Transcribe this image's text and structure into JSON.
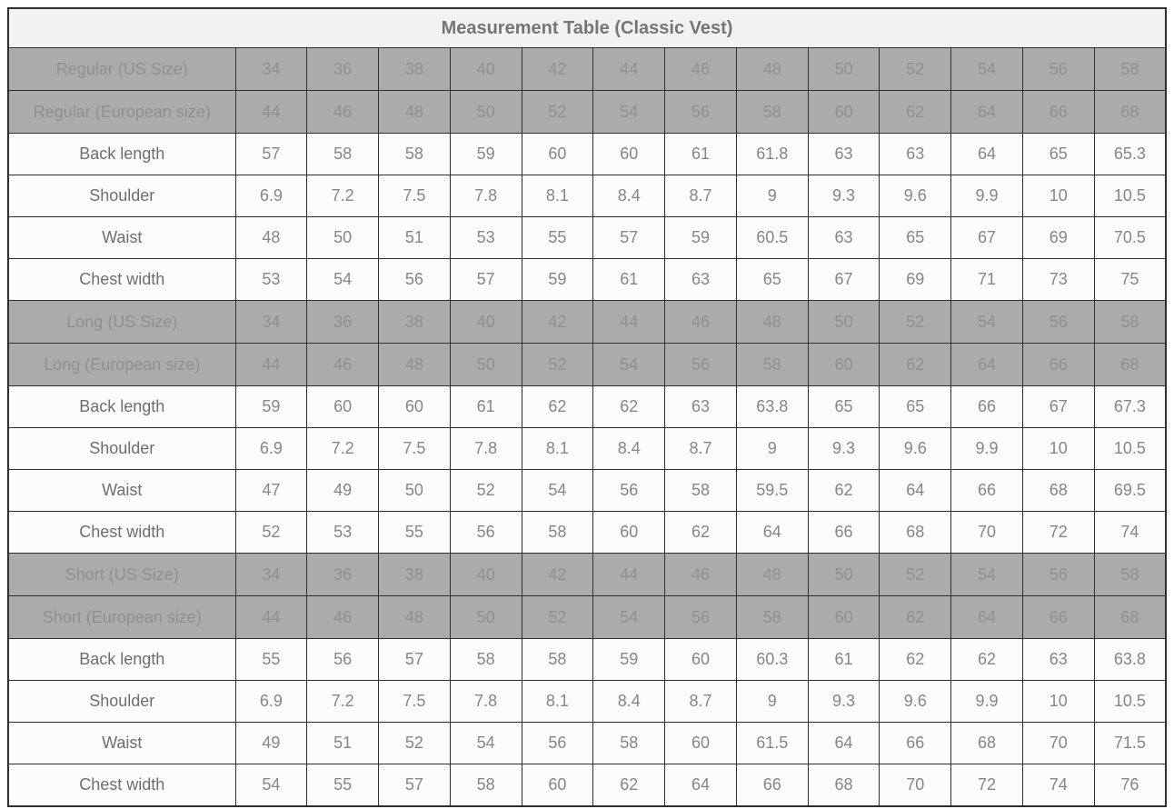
{
  "page": {
    "title": "Measurement Table (Classic Vest)"
  },
  "colors": {
    "border": "#2e2e2e",
    "title_bg": "#f2f2f2",
    "title_text": "#757575",
    "size_row_bg": "#ababab",
    "size_row_text": "#8f8f8f",
    "size_row_divider": "#9c9c9c",
    "measure_row_bg": "#fcfcfc",
    "measure_label_text": "#6e6e6e",
    "measure_value_text": "#868686"
  },
  "chart_data": {
    "type": "table",
    "title": "Measurement Table (Classic Vest)",
    "columns_per_row": 13,
    "sections": [
      {
        "name": "Regular",
        "size_rows": [
          {
            "label": "Regular (US Size)",
            "values": [
              34,
              36,
              38,
              40,
              42,
              44,
              46,
              48,
              50,
              52,
              54,
              56,
              58
            ]
          },
          {
            "label": "Regular (European size)",
            "values": [
              44,
              46,
              48,
              50,
              52,
              54,
              56,
              58,
              60,
              62,
              64,
              66,
              68
            ]
          }
        ],
        "measurement_rows": [
          {
            "label": "Back length",
            "values": [
              57,
              58,
              58,
              59,
              60,
              60,
              61,
              61.8,
              63,
              63,
              64,
              65,
              65.3
            ]
          },
          {
            "label": "Shoulder",
            "values": [
              6.9,
              7.2,
              7.5,
              7.8,
              8.1,
              8.4,
              8.7,
              9,
              9.3,
              9.6,
              9.9,
              10,
              10.5
            ]
          },
          {
            "label": "Waist",
            "values": [
              48,
              50,
              51,
              53,
              55,
              57,
              59,
              60.5,
              63,
              65,
              67,
              69,
              70.5
            ]
          },
          {
            "label": "Chest width",
            "values": [
              53,
              54,
              56,
              57,
              59,
              61,
              63,
              65,
              67,
              69,
              71,
              73,
              75
            ]
          }
        ]
      },
      {
        "name": "Long",
        "size_rows": [
          {
            "label": "Long (US Size)",
            "values": [
              34,
              36,
              38,
              40,
              42,
              44,
              46,
              48,
              50,
              52,
              54,
              56,
              58
            ]
          },
          {
            "label": "Long (European size)",
            "values": [
              44,
              46,
              48,
              50,
              52,
              54,
              56,
              58,
              60,
              62,
              64,
              66,
              68
            ]
          }
        ],
        "measurement_rows": [
          {
            "label": "Back length",
            "values": [
              59,
              60,
              60,
              61,
              62,
              62,
              63,
              63.8,
              65,
              65,
              66,
              67,
              67.3
            ]
          },
          {
            "label": "Shoulder",
            "values": [
              6.9,
              7.2,
              7.5,
              7.8,
              8.1,
              8.4,
              8.7,
              9,
              9.3,
              9.6,
              9.9,
              10,
              10.5
            ]
          },
          {
            "label": "Waist",
            "values": [
              47,
              49,
              50,
              52,
              54,
              56,
              58,
              59.5,
              62,
              64,
              66,
              68,
              69.5
            ]
          },
          {
            "label": "Chest width",
            "values": [
              52,
              53,
              55,
              56,
              58,
              60,
              62,
              64,
              66,
              68,
              70,
              72,
              74
            ]
          }
        ]
      },
      {
        "name": "Short",
        "size_rows": [
          {
            "label": "Short (US Size)",
            "values": [
              34,
              36,
              38,
              40,
              42,
              44,
              46,
              48,
              50,
              52,
              54,
              56,
              58
            ]
          },
          {
            "label": "Short (European size)",
            "values": [
              44,
              46,
              48,
              50,
              52,
              54,
              56,
              58,
              60,
              62,
              64,
              66,
              68
            ]
          }
        ],
        "measurement_rows": [
          {
            "label": "Back length",
            "values": [
              55,
              56,
              57,
              58,
              58,
              59,
              60,
              60.3,
              61,
              62,
              62,
              63,
              63.8
            ]
          },
          {
            "label": "Shoulder",
            "values": [
              6.9,
              7.2,
              7.5,
              7.8,
              8.1,
              8.4,
              8.7,
              9,
              9.3,
              9.6,
              9.9,
              10,
              10.5
            ]
          },
          {
            "label": "Waist",
            "values": [
              49,
              51,
              52,
              54,
              56,
              58,
              60,
              61.5,
              64,
              66,
              68,
              70,
              71.5
            ]
          },
          {
            "label": "Chest width",
            "values": [
              54,
              55,
              57,
              58,
              60,
              62,
              64,
              66,
              68,
              70,
              72,
              74,
              76
            ]
          }
        ]
      }
    ]
  }
}
